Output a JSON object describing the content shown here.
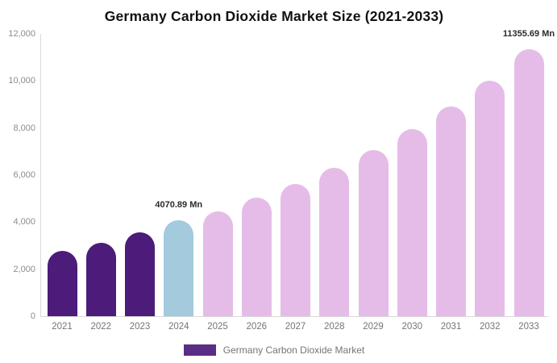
{
  "title": "Germany Carbon Dioxide Market Size (2021-2033)",
  "legend": {
    "label": "Germany Carbon Dioxide Market",
    "swatch_color": "#5b2d87"
  },
  "colors": {
    "bar_dark_purple": "#4d1b79",
    "bar_light_blue": "#a3cadd",
    "bar_light_plum": "#e5bce8",
    "axis_line": "#d9d9d9",
    "y_label_text": "#8c8c8c",
    "x_label_text": "#757575",
    "annotation_text": "#2b2b2b",
    "title_text": "#111111",
    "background": "#ffffff"
  },
  "chart_data": {
    "type": "bar",
    "title": "Germany Carbon Dioxide Market Size (2021-2033)",
    "xlabel": "",
    "ylabel": "",
    "categories": [
      "2021",
      "2022",
      "2023",
      "2024",
      "2025",
      "2026",
      "2027",
      "2028",
      "2029",
      "2030",
      "2031",
      "2032",
      "2033"
    ],
    "series": [
      {
        "name": "Germany Carbon Dioxide Market",
        "values": [
          2790,
          3130,
          3550,
          4070.89,
          4450,
          5030,
          5620,
          6310,
          7070,
          7960,
          8930,
          10000,
          11355.69
        ]
      }
    ],
    "bar_colors": [
      "#4d1b79",
      "#4d1b79",
      "#4d1b79",
      "#a3cadd",
      "#e5bce8",
      "#e5bce8",
      "#e5bce8",
      "#e5bce8",
      "#e5bce8",
      "#e5bce8",
      "#e5bce8",
      "#e5bce8",
      "#e5bce8"
    ],
    "ylim": [
      0,
      12000
    ],
    "yticks": [
      {
        "value": 0,
        "label": "0"
      },
      {
        "value": 2000,
        "label": "2,000"
      },
      {
        "value": 4000,
        "label": "4,000"
      },
      {
        "value": 6000,
        "label": "6,000"
      },
      {
        "value": 8000,
        "label": "8,000"
      },
      {
        "value": 10000,
        "label": "10,000"
      },
      {
        "value": 12000,
        "label": "12,000"
      }
    ],
    "grid": "off",
    "legend_position": "bottom",
    "annotations": [
      {
        "category": "2024",
        "text": "4070.89 Mn"
      },
      {
        "category": "2033",
        "text": "11355.69 Mn"
      }
    ]
  }
}
